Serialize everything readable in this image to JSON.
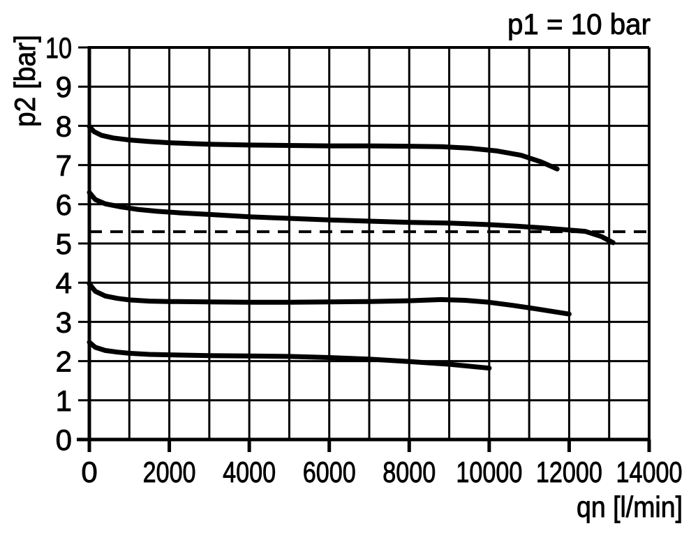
{
  "title": "p1 = 10 bar",
  "chart_data": {
    "type": "line",
    "title": "p1 = 10 bar",
    "xlabel": "qn [l/min]",
    "ylabel": "p2 [bar]",
    "xlim": [
      0,
      14000
    ],
    "ylim": [
      0,
      10
    ],
    "x_grid_step": 1000,
    "y_grid_step": 1,
    "x_label_step": 2000,
    "x_tick_labels": [
      "0",
      "2000",
      "4000",
      "6000",
      "8000",
      "10000",
      "12000",
      "14000"
    ],
    "y_tick_labels": [
      "0",
      "1",
      "2",
      "3",
      "4",
      "5",
      "6",
      "7",
      "8",
      "9",
      "10"
    ],
    "grid": true,
    "legend": "none",
    "colors": {
      "curve": "#000000",
      "grid": "#000000",
      "background": "#ffffff"
    },
    "series": [
      {
        "name": "curve-1",
        "style": "solid",
        "points": [
          [
            0,
            7.98
          ],
          [
            120,
            7.85
          ],
          [
            300,
            7.76
          ],
          [
            600,
            7.69
          ],
          [
            1000,
            7.64
          ],
          [
            1500,
            7.6
          ],
          [
            2000,
            7.57
          ],
          [
            2500,
            7.55
          ],
          [
            3000,
            7.53
          ],
          [
            4000,
            7.51
          ],
          [
            5000,
            7.5
          ],
          [
            6000,
            7.49
          ],
          [
            7000,
            7.49
          ],
          [
            8000,
            7.48
          ],
          [
            8800,
            7.47
          ],
          [
            9500,
            7.43
          ],
          [
            10200,
            7.36
          ],
          [
            10800,
            7.25
          ],
          [
            11300,
            7.08
          ],
          [
            11700,
            6.9
          ]
        ]
      },
      {
        "name": "curve-2",
        "style": "solid",
        "points": [
          [
            0,
            6.3
          ],
          [
            150,
            6.12
          ],
          [
            400,
            6.01
          ],
          [
            800,
            5.93
          ],
          [
            1200,
            5.87
          ],
          [
            1700,
            5.82
          ],
          [
            2300,
            5.78
          ],
          [
            3000,
            5.74
          ],
          [
            4000,
            5.68
          ],
          [
            5000,
            5.64
          ],
          [
            6000,
            5.6
          ],
          [
            7000,
            5.57
          ],
          [
            8000,
            5.54
          ],
          [
            9000,
            5.52
          ],
          [
            10000,
            5.48
          ],
          [
            10700,
            5.44
          ],
          [
            11300,
            5.4
          ],
          [
            11900,
            5.35
          ],
          [
            12400,
            5.31
          ],
          [
            12800,
            5.18
          ],
          [
            13100,
            5.02
          ]
        ]
      },
      {
        "name": "curve-3",
        "style": "solid",
        "points": [
          [
            0,
            3.97
          ],
          [
            150,
            3.78
          ],
          [
            400,
            3.66
          ],
          [
            700,
            3.6
          ],
          [
            1000,
            3.56
          ],
          [
            1500,
            3.53
          ],
          [
            2000,
            3.52
          ],
          [
            3000,
            3.51
          ],
          [
            4000,
            3.5
          ],
          [
            5000,
            3.5
          ],
          [
            6000,
            3.51
          ],
          [
            7000,
            3.52
          ],
          [
            8000,
            3.54
          ],
          [
            8800,
            3.57
          ],
          [
            9400,
            3.55
          ],
          [
            10000,
            3.5
          ],
          [
            10600,
            3.42
          ],
          [
            11200,
            3.33
          ],
          [
            12000,
            3.2
          ]
        ]
      },
      {
        "name": "curve-4",
        "style": "solid",
        "points": [
          [
            0,
            2.48
          ],
          [
            150,
            2.35
          ],
          [
            400,
            2.27
          ],
          [
            700,
            2.23
          ],
          [
            1000,
            2.2
          ],
          [
            1500,
            2.17
          ],
          [
            2000,
            2.16
          ],
          [
            3000,
            2.14
          ],
          [
            4000,
            2.13
          ],
          [
            5000,
            2.12
          ],
          [
            6000,
            2.09
          ],
          [
            7000,
            2.05
          ],
          [
            8000,
            1.99
          ],
          [
            9000,
            1.92
          ],
          [
            10000,
            1.82
          ]
        ]
      },
      {
        "name": "reference-line",
        "style": "dashed",
        "points": [
          [
            0,
            5.3
          ],
          [
            14000,
            5.3
          ]
        ]
      }
    ]
  }
}
